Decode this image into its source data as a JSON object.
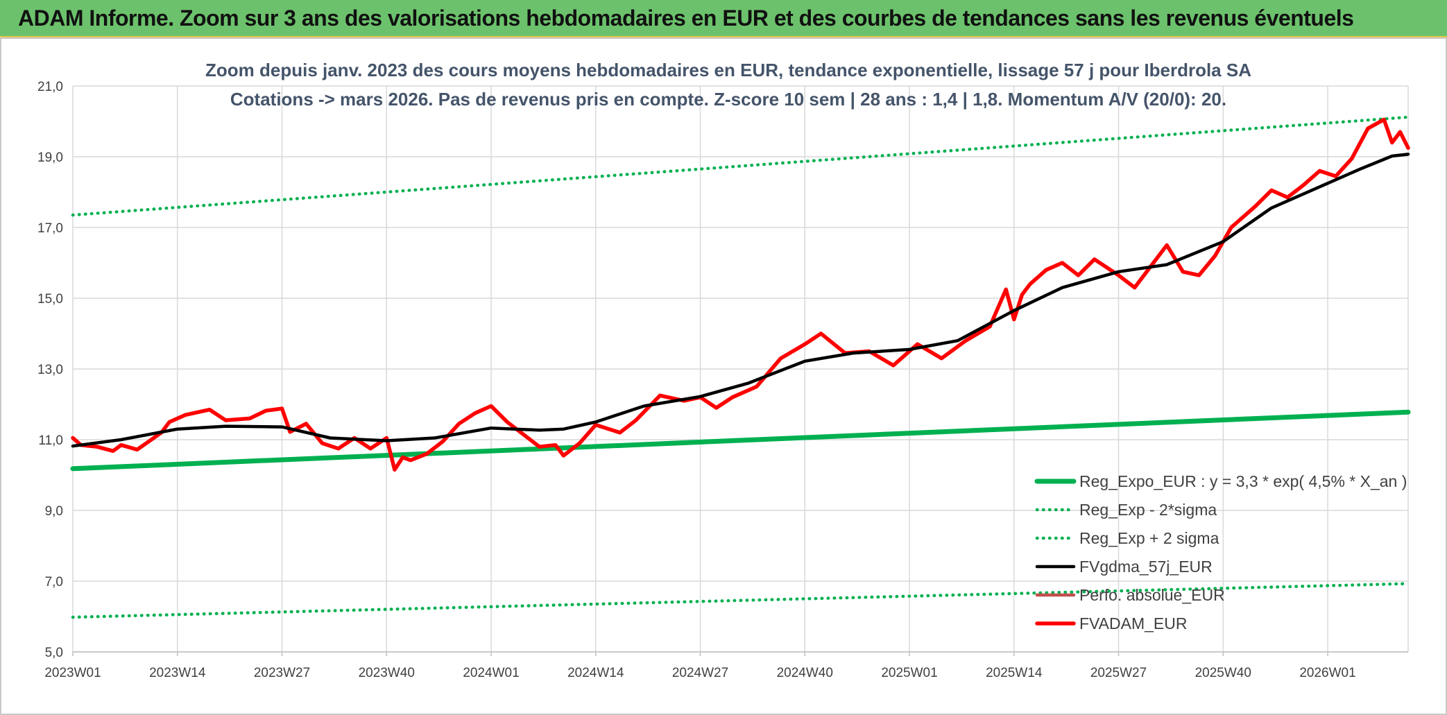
{
  "header": {
    "title": "ADAM Informe. Zoom sur 3 ans des valorisations hebdomadaires en EUR et des courbes de tendances sans les revenus éventuels"
  },
  "chart_data": {
    "type": "line",
    "title_line1": "Zoom depuis janv. 2023 des cours moyens hebdomadaires en EUR, tendance exponentielle, lissage 57 j pour Iberdrola SA",
    "title_line2": "Cotations -> mars 2026. Pas de revenus pris en compte. Z-score 10 sem | 28 ans : 1,4 | 1,8. Momentum A/V (20/0): 20.",
    "xlabel": "",
    "ylabel": "",
    "ylim": [
      5,
      21
    ],
    "y_ticks": [
      "5,0",
      "7,0",
      "9,0",
      "11,0",
      "13,0",
      "15,0",
      "17,0",
      "19,0",
      "21,0"
    ],
    "x_ticks": [
      "2023W01",
      "2023W14",
      "2023W27",
      "2023W40",
      "2024W01",
      "2024W14",
      "2024W27",
      "2024W40",
      "2025W01",
      "2025W14",
      "2025W27",
      "2025W40",
      "2026W01"
    ],
    "x_start": "2023W01",
    "x_end": "2026W11",
    "grid": true,
    "legend_position": "bottom-right",
    "series": [
      {
        "name": "Reg_Expo_EUR : y = 3,3 * exp( 4,5% *  X_an )",
        "color": "#00b050",
        "style": "solid",
        "x": [
          "2023W01",
          "2026W11"
        ],
        "values": [
          10.18,
          11.78
        ]
      },
      {
        "name": "Reg_Exp - 2*sigma",
        "color": "#00b050",
        "style": "dotted",
        "x": [
          "2023W01",
          "2026W11"
        ],
        "values": [
          5.98,
          6.93
        ]
      },
      {
        "name": "Reg_Exp + 2 sigma",
        "color": "#00b050",
        "style": "dotted",
        "x": [
          "2023W01",
          "2026W11"
        ],
        "values": [
          17.35,
          20.12
        ]
      },
      {
        "name": "FVgdma_57j_EUR",
        "color": "#000000",
        "style": "solid",
        "x": [
          "2023W01",
          "2023W07",
          "2023W14",
          "2023W20",
          "2023W27",
          "2023W33",
          "2023W40",
          "2023W46",
          "2024W01",
          "2024W07",
          "2024W10",
          "2024W14",
          "2024W20",
          "2024W27",
          "2024W33",
          "2024W40",
          "2024W46",
          "2025W01",
          "2025W07",
          "2025W14",
          "2025W20",
          "2025W27",
          "2025W33",
          "2025W40",
          "2025W46",
          "2026W01",
          "2026W05",
          "2026W09",
          "2026W11"
        ],
        "values": [
          10.82,
          11.0,
          11.3,
          11.38,
          11.36,
          11.05,
          10.97,
          11.05,
          11.33,
          11.27,
          11.3,
          11.5,
          11.95,
          12.22,
          12.6,
          13.22,
          13.45,
          13.55,
          13.8,
          14.65,
          15.3,
          15.75,
          15.95,
          16.6,
          17.55,
          18.25,
          18.65,
          19.02,
          19.07
        ]
      },
      {
        "name": "Perfo. absolue_EUR",
        "color": "#c0504d",
        "style": "solid",
        "x": [],
        "values": []
      },
      {
        "name": "FVADAM_EUR",
        "color": "#ff0000",
        "style": "solid",
        "x": [
          "2023W01",
          "2023W02",
          "2023W04",
          "2023W06",
          "2023W07",
          "2023W09",
          "2023W12",
          "2023W13",
          "2023W15",
          "2023W18",
          "2023W20",
          "2023W23",
          "2023W25",
          "2023W27",
          "2023W28",
          "2023W30",
          "2023W32",
          "2023W34",
          "2023W36",
          "2023W38",
          "2023W40",
          "2023W41",
          "2023W42",
          "2023W43",
          "2023W45",
          "2023W47",
          "2023W49",
          "2023W51",
          "2024W01",
          "2024W03",
          "2024W05",
          "2024W07",
          "2024W09",
          "2024W10",
          "2024W12",
          "2024W14",
          "2024W17",
          "2024W19",
          "2024W22",
          "2024W25",
          "2024W27",
          "2024W29",
          "2024W31",
          "2024W34",
          "2024W37",
          "2024W40",
          "2024W42",
          "2024W45",
          "2024W48",
          "2024W51",
          "2025W02",
          "2025W05",
          "2025W08",
          "2025W11",
          "2025W13",
          "2025W14",
          "2025W15",
          "2025W16",
          "2025W18",
          "2025W20",
          "2025W22",
          "2025W24",
          "2025W27",
          "2025W29",
          "2025W31",
          "2025W33",
          "2025W35",
          "2025W37",
          "2025W39",
          "2025W41",
          "2025W44",
          "2025W46",
          "2025W48",
          "2025W50",
          "2025W52",
          "2026W02",
          "2026W04",
          "2026W06",
          "2026W08",
          "2026W09",
          "2026W10",
          "2026W11"
        ],
        "values": [
          11.05,
          10.85,
          10.8,
          10.68,
          10.85,
          10.72,
          11.2,
          11.5,
          11.7,
          11.85,
          11.55,
          11.6,
          11.82,
          11.88,
          11.22,
          11.45,
          10.9,
          10.75,
          11.05,
          10.75,
          11.05,
          10.15,
          10.5,
          10.42,
          10.6,
          10.95,
          11.45,
          11.75,
          11.95,
          11.5,
          11.15,
          10.8,
          10.85,
          10.55,
          10.9,
          11.42,
          11.2,
          11.55,
          12.25,
          12.1,
          12.2,
          11.9,
          12.2,
          12.5,
          13.3,
          13.7,
          14.0,
          13.45,
          13.5,
          13.1,
          13.7,
          13.3,
          13.8,
          14.2,
          15.25,
          14.4,
          15.1,
          15.4,
          15.8,
          16.0,
          15.65,
          16.1,
          15.65,
          15.3,
          15.9,
          16.5,
          15.75,
          15.65,
          16.2,
          17.0,
          17.6,
          18.05,
          17.85,
          18.2,
          18.6,
          18.45,
          18.95,
          19.8,
          20.05,
          19.4,
          19.7,
          19.25
        ]
      }
    ]
  }
}
